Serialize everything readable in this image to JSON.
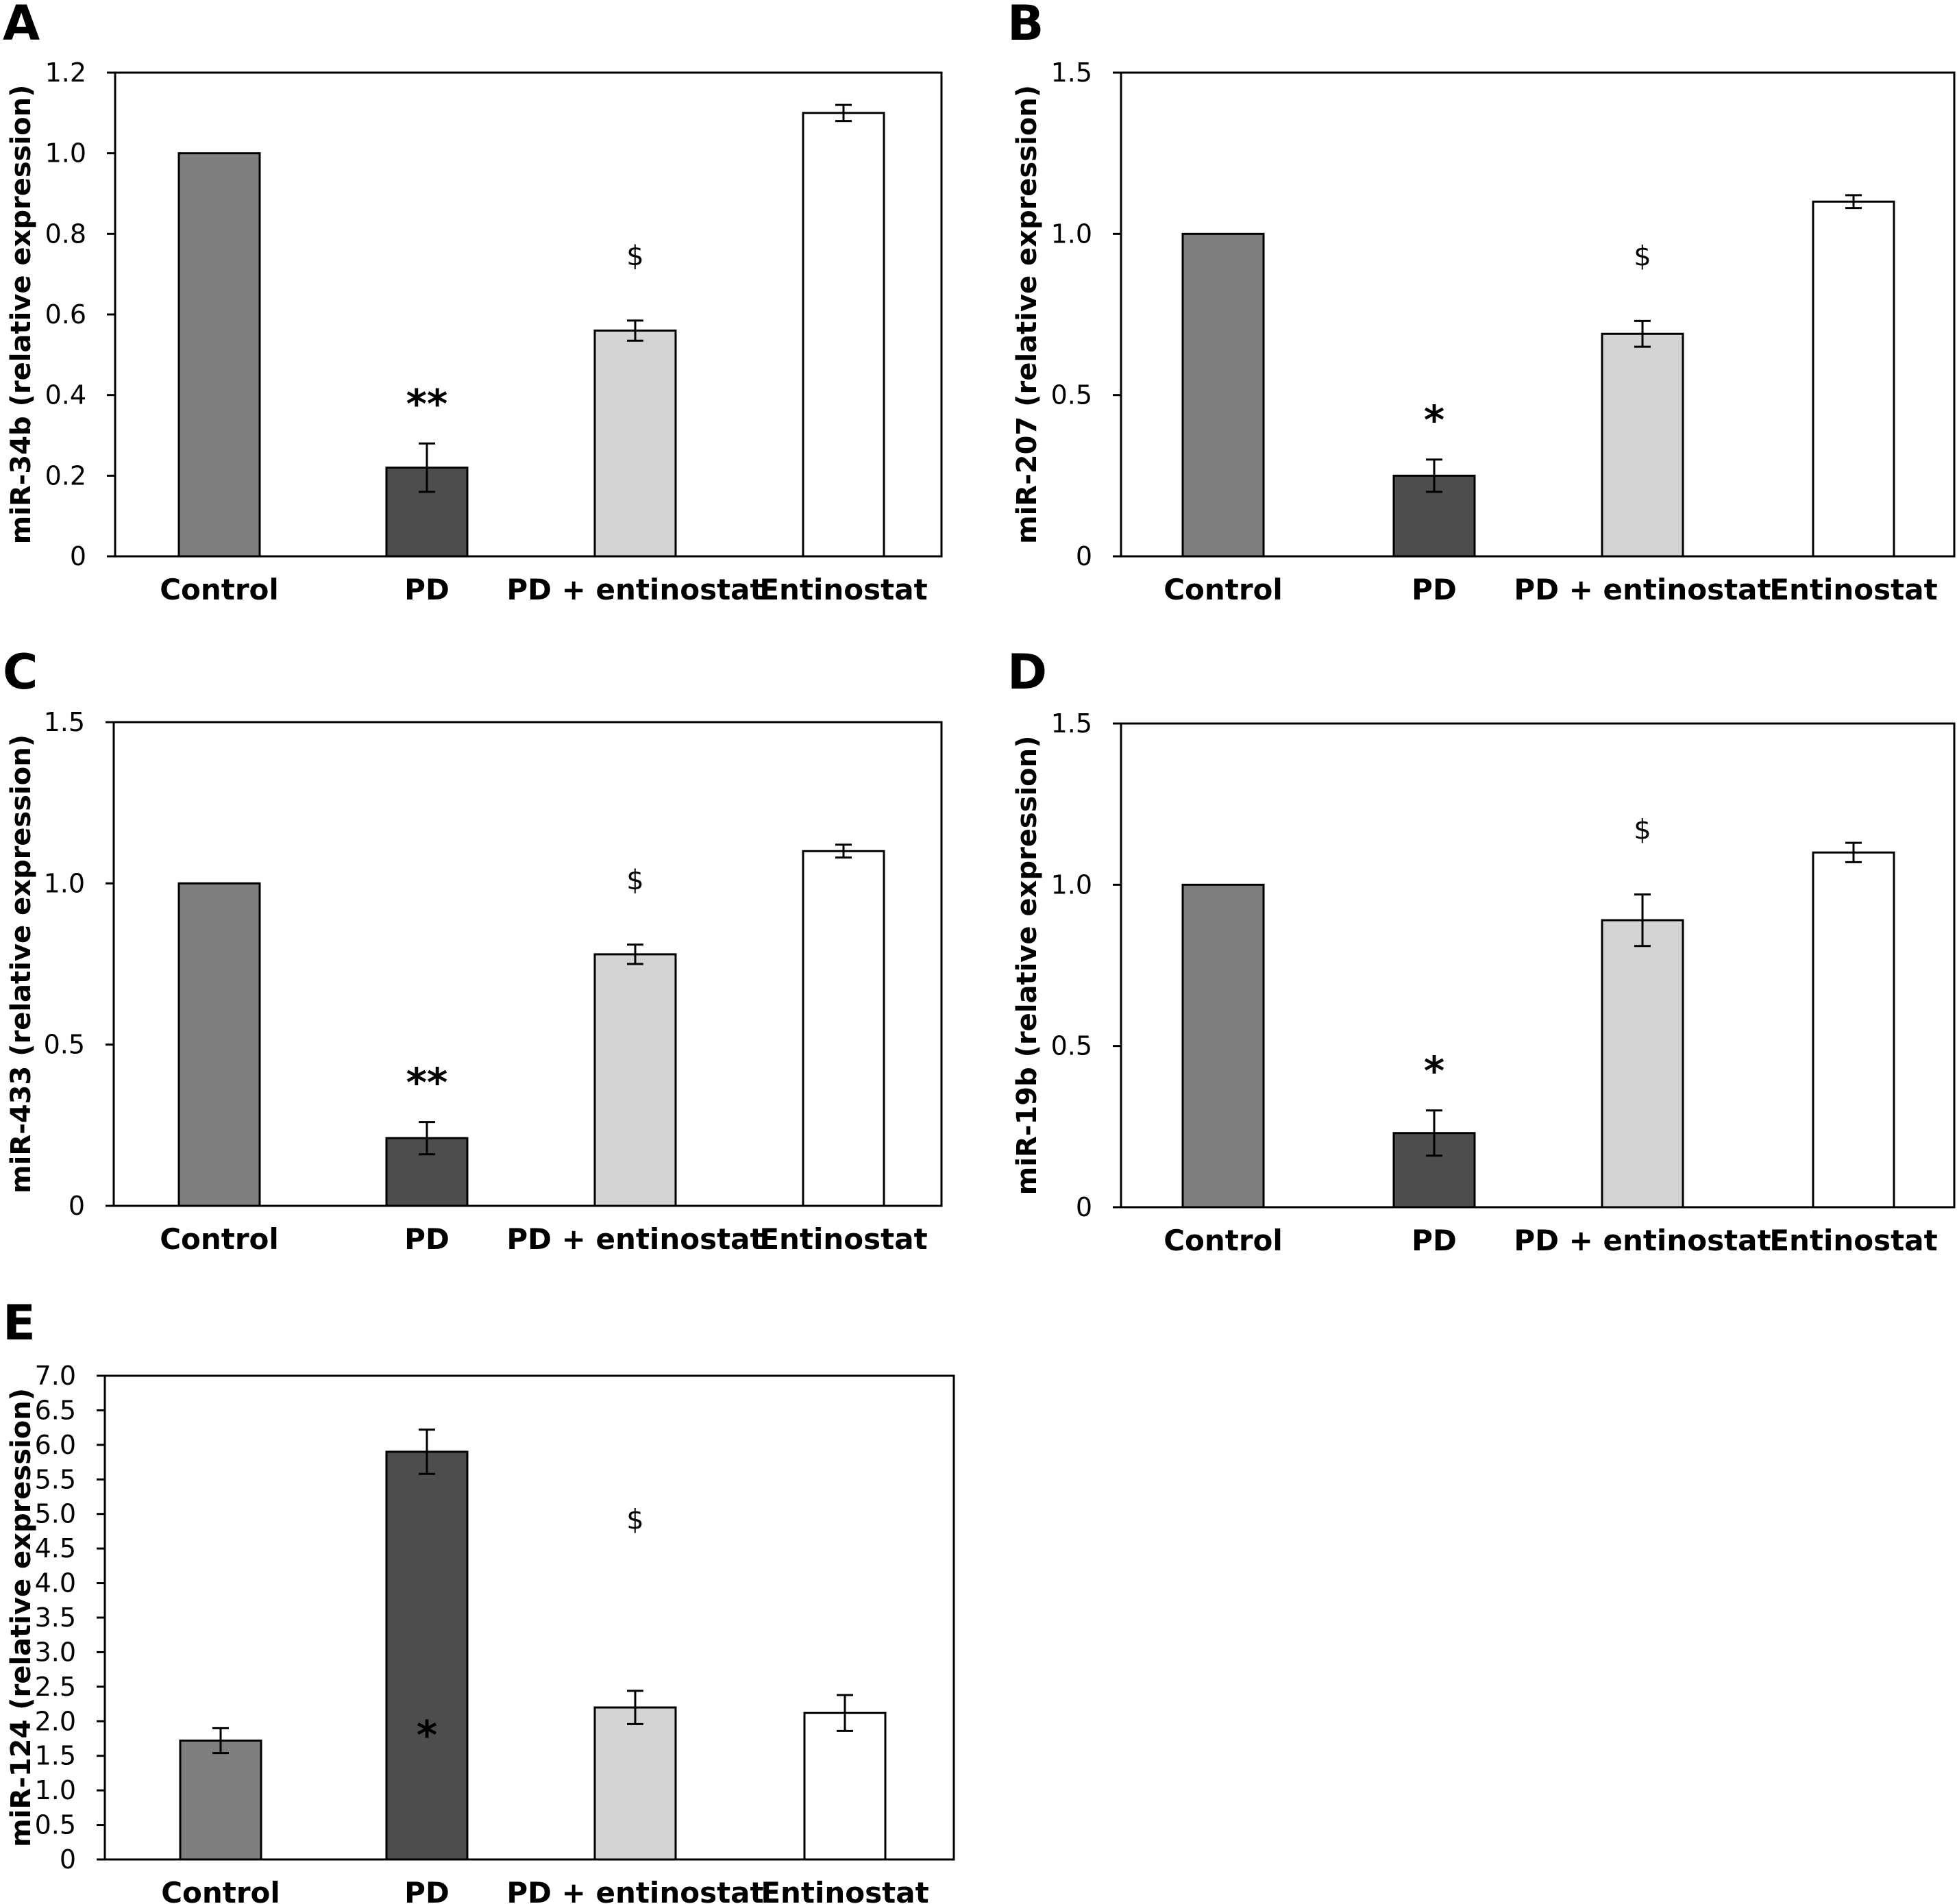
{
  "colors": {
    "Control": "#7f7f7f",
    "PD": "#4d4d4d",
    "PD + entinostat": "#d4d4d4",
    "Entinostat": "#ffffff"
  },
  "chart_data": [
    {
      "panel": "A",
      "type": "bar",
      "ylabel": "miR-34b (relative expression)",
      "ylim": [
        0,
        1.2
      ],
      "yticks": [
        "0",
        "0.2",
        "0.4",
        "0.6",
        "0.8",
        "1.0",
        "1.2"
      ],
      "categories": [
        "Control",
        "PD",
        "PD + entinostat",
        "Entinostat"
      ],
      "values": [
        1.0,
        0.22,
        0.56,
        1.1
      ],
      "errors": [
        0,
        0.06,
        0.025,
        0.02
      ],
      "annotations": [
        "",
        "**",
        "$",
        ""
      ]
    },
    {
      "panel": "B",
      "type": "bar",
      "ylabel": "miR-207 (relative expression)",
      "ylim": [
        0,
        1.5
      ],
      "yticks": [
        "0",
        "0.5",
        "1.0",
        "1.5"
      ],
      "categories": [
        "Control",
        "PD",
        "PD + entinostat",
        "Entinostat"
      ],
      "values": [
        1.0,
        0.25,
        0.69,
        1.1
      ],
      "errors": [
        0,
        0.05,
        0.04,
        0.02
      ],
      "annotations": [
        "",
        "*",
        "$",
        ""
      ]
    },
    {
      "panel": "C",
      "type": "bar",
      "ylabel": "miR-433 (relative expression)",
      "ylim": [
        0,
        1.5
      ],
      "yticks": [
        "0",
        "0.5",
        "1.0",
        "1.5"
      ],
      "categories": [
        "Control",
        "PD",
        "PD + entinostat",
        "Entinostat"
      ],
      "values": [
        1.0,
        0.21,
        0.78,
        1.1
      ],
      "errors": [
        0,
        0.05,
        0.03,
        0.02
      ],
      "annotations": [
        "",
        "**",
        "$",
        ""
      ]
    },
    {
      "panel": "D",
      "type": "bar",
      "ylabel": "miR-19b (relative expression)",
      "ylim": [
        0,
        1.5
      ],
      "yticks": [
        "0",
        "0.5",
        "1.0",
        "1.5"
      ],
      "categories": [
        "Control",
        "PD",
        "PD + entinostat",
        "Entinostat"
      ],
      "values": [
        1.0,
        0.23,
        0.89,
        1.1
      ],
      "errors": [
        0,
        0.07,
        0.08,
        0.03
      ],
      "annotations": [
        "",
        "*",
        "$",
        ""
      ]
    },
    {
      "panel": "E",
      "type": "bar",
      "ylabel": "miR-124 (relative expression)",
      "ylim": [
        0,
        7.0
      ],
      "yticks": [
        "0",
        "0.5",
        "1.0",
        "1.5",
        "2.0",
        "2.5",
        "3.0",
        "3.5",
        "4.0",
        "4.5",
        "5.0",
        "5.5",
        "6.0",
        "6.5",
        "7.0"
      ],
      "categories": [
        "Control",
        "PD",
        "PD + entinostat",
        "Entinostat"
      ],
      "values": [
        1.72,
        5.9,
        2.2,
        2.12
      ],
      "errors": [
        0.18,
        0.32,
        0.24,
        0.26
      ],
      "annotations": [
        "",
        "*",
        "$",
        ""
      ]
    }
  ]
}
